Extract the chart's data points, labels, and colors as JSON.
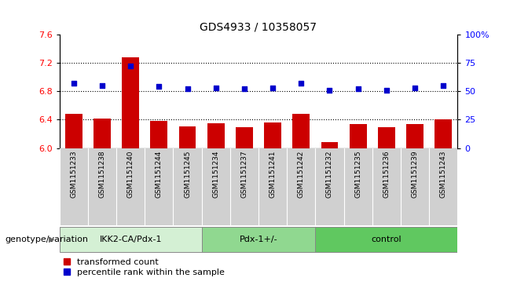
{
  "title": "GDS4933 / 10358057",
  "samples": [
    "GSM1151233",
    "GSM1151238",
    "GSM1151240",
    "GSM1151244",
    "GSM1151245",
    "GSM1151234",
    "GSM1151237",
    "GSM1151241",
    "GSM1151242",
    "GSM1151232",
    "GSM1151235",
    "GSM1151236",
    "GSM1151239",
    "GSM1151243"
  ],
  "transformed_count": [
    6.48,
    6.42,
    7.28,
    6.38,
    6.31,
    6.35,
    6.3,
    6.36,
    6.48,
    6.08,
    6.34,
    6.3,
    6.34,
    6.4
  ],
  "percentile_rank": [
    57,
    55,
    72,
    54,
    52,
    53,
    52,
    53,
    57,
    51,
    52,
    51,
    53,
    55
  ],
  "groups": [
    {
      "label": "IKK2-CA/Pdx-1",
      "start": 0,
      "end": 5,
      "color": "#d4f0d4"
    },
    {
      "label": "Pdx-1+/-",
      "start": 5,
      "end": 9,
      "color": "#90d890"
    },
    {
      "label": "control",
      "start": 9,
      "end": 14,
      "color": "#60c860"
    }
  ],
  "bar_color": "#cc0000",
  "dot_color": "#0000cc",
  "ylim_left": [
    6.0,
    7.6
  ],
  "ylim_right": [
    0,
    100
  ],
  "yticks_left": [
    6.0,
    6.4,
    6.8,
    7.2,
    7.6
  ],
  "yticks_right": [
    0,
    25,
    50,
    75,
    100
  ],
  "grid_values": [
    6.4,
    6.8,
    7.2
  ],
  "xlabel": "genotype/variation",
  "legend_item1": "transformed count",
  "legend_item2": "percentile rank within the sample",
  "tick_bg_color": "#d0d0d0",
  "plot_bg_color": "#ffffff"
}
